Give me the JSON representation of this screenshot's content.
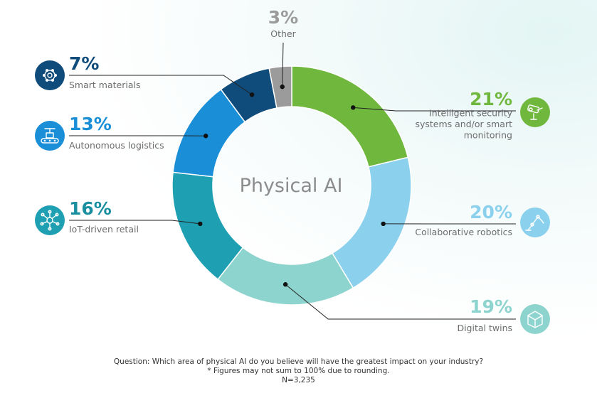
{
  "chart_data": {
    "type": "pie",
    "title": "Physical AI",
    "unit": "%",
    "slices": [
      {
        "label": "Intelligent security systems and/or smart monitoring",
        "label_lines": [
          "Intelligent security",
          "systems and/or smart",
          "monitoring"
        ],
        "value": 21,
        "display": "21%",
        "color": "#70b73e",
        "icon": "security-camera-icon"
      },
      {
        "label": "Collaborative robotics",
        "label_lines": [
          "Collaborative robotics"
        ],
        "value": 20,
        "display": "20%",
        "color": "#8bd1ee",
        "icon": "robot-arm-icon"
      },
      {
        "label": "Digital twins",
        "label_lines": [
          "Digital twins"
        ],
        "value": 19,
        "display": "19%",
        "color": "#8dd3ce",
        "icon": "cube-icon"
      },
      {
        "label": "IoT-driven retail",
        "label_lines": [
          "IoT-driven retail"
        ],
        "value": 16,
        "display": "16%",
        "color": "#1f9fb2",
        "icon": "network-node-icon"
      },
      {
        "label": "Autonomous logistics",
        "label_lines": [
          "Autonomous logistics"
        ],
        "value": 13,
        "display": "13%",
        "color": "#1a8fd8",
        "icon": "conveyor-robot-icon"
      },
      {
        "label": "Smart materials",
        "label_lines": [
          "Smart materials"
        ],
        "value": 7,
        "display": "7%",
        "color": "#0f4c7b",
        "icon": "molecule-icon"
      },
      {
        "label": "Other",
        "label_lines": [
          "Other"
        ],
        "value": 3,
        "display": "3%",
        "color": "#9b9b9b",
        "icon": ""
      }
    ],
    "label_colors": {
      "Intelligent security systems and/or smart monitoring": "#70b73e",
      "Collaborative robotics": "#8bd1ee",
      "Digital twins": "#8dd3ce",
      "IoT-driven retail": "#1a8fa0",
      "Autonomous logistics": "#1a8fd8",
      "Smart materials": "#0f4c7b",
      "Other": "#9b9b9b"
    }
  },
  "footer": {
    "question": "Question: Which area of physical AI do you believe will have the greatest impact on your industry?",
    "note": "* Figures may not sum to 100% due to rounding.",
    "n": "N=3,235"
  }
}
